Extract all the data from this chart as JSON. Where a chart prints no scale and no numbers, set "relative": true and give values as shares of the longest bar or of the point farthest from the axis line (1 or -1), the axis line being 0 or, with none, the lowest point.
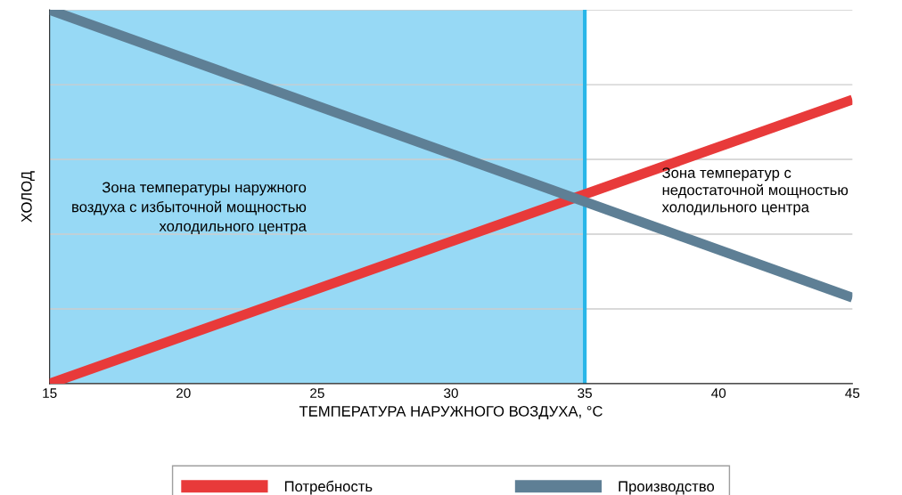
{
  "chart_data": {
    "type": "line",
    "relative": true,
    "x": [
      15,
      45
    ],
    "xlim": [
      15,
      45
    ],
    "xticks": [
      15,
      20,
      25,
      30,
      35,
      40,
      45
    ],
    "xlabel": "ТЕМПЕРАТУРА НАРУЖНОГО ВОЗДУХА, °C",
    "ylabel": "ХОЛОД",
    "series": [
      {
        "name": "Потребность",
        "color": "#e83a3a",
        "values": [
          0,
          0.76
        ]
      },
      {
        "name": "Производство",
        "color": "#5e7f95",
        "values": [
          1,
          0.23
        ]
      }
    ],
    "bands": [
      {
        "axis": "x",
        "from": 15,
        "to": 35,
        "color": "#7dd0f2"
      }
    ],
    "ref_lines": [
      {
        "axis": "x",
        "value": 35,
        "color": "#29b6e8"
      }
    ],
    "annotations": [
      "Зона температуры наружного\nвоздуха с избыточной мощностью\nхолодильного центра",
      "Зона температур с\nнедостаточной мощностью\nхолодильного центра"
    ],
    "grid": "y",
    "legend": "bottom"
  }
}
